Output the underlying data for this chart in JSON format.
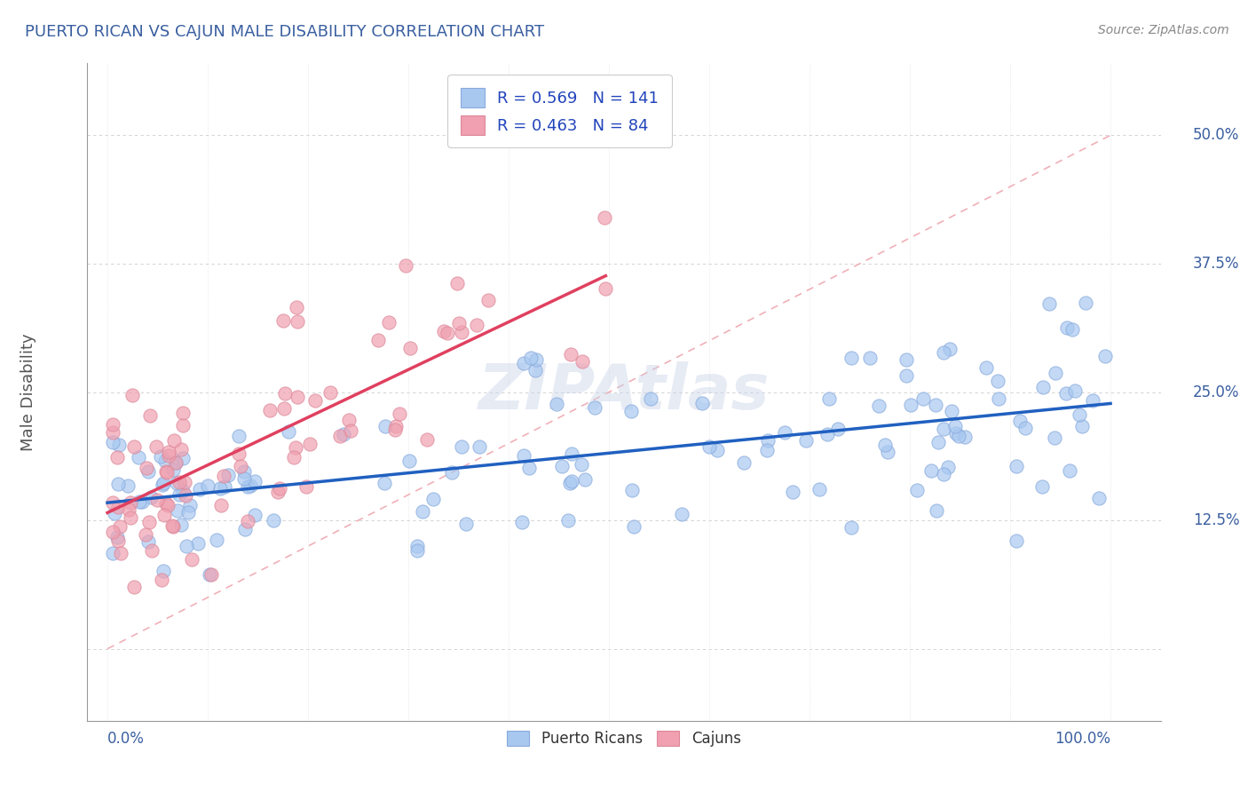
{
  "title": "PUERTO RICAN VS CAJUN MALE DISABILITY CORRELATION CHART",
  "source": "Source: ZipAtlas.com",
  "ylabel": "Male Disability",
  "blue_scatter_color": "#a8c8f0",
  "pink_scatter_color": "#f0a0b0",
  "blue_line_color": "#2060c0",
  "pink_line_color": "#e04060",
  "ref_line_color": "#f0b0b8",
  "grid_color": "#cccccc",
  "title_color": "#3a5fa0",
  "axis_color": "#555555",
  "tick_color": "#3a5fa0",
  "source_color": "#888888",
  "legend_color": "#2244bb",
  "watermark_color": "#c8d4e8",
  "pr_R": 0.569,
  "pr_N": 141,
  "cj_R": 0.463,
  "cj_N": 84,
  "ytick_vals": [
    0.0,
    0.125,
    0.25,
    0.375,
    0.5
  ],
  "ytick_labels": [
    "",
    "12.5%",
    "25.0%",
    "37.5%",
    "50.0%"
  ],
  "xlim": [
    -0.02,
    1.05
  ],
  "ylim": [
    -0.07,
    0.57
  ]
}
